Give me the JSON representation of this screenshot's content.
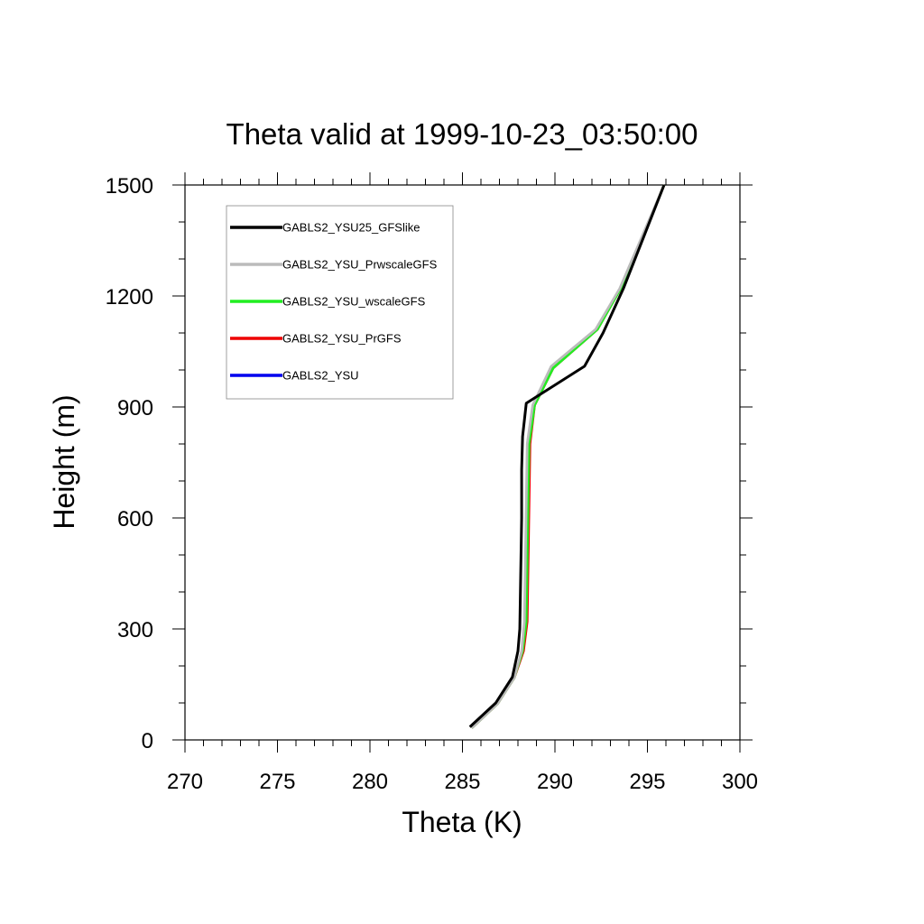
{
  "chart_data": {
    "type": "line",
    "title": "Theta valid at 1999-10-23_03:50:00",
    "xlabel": "Theta (K)",
    "ylabel": "Height (m)",
    "xlim": [
      270,
      300
    ],
    "ylim": [
      0,
      1500
    ],
    "x_ticks": [
      "270",
      "275",
      "280",
      "285",
      "290",
      "295",
      "300"
    ],
    "y_ticks": [
      "0",
      "300",
      "600",
      "900",
      "1200",
      "1500"
    ],
    "legend_position": "top-left",
    "grid": false,
    "series": [
      {
        "name": "GABLS2_YSU25_GFSlike",
        "color": "#000000",
        "points": [
          [
            285.4,
            35
          ],
          [
            286.8,
            100
          ],
          [
            287.7,
            170
          ],
          [
            288.0,
            240
          ],
          [
            288.1,
            300
          ],
          [
            288.15,
            450
          ],
          [
            288.2,
            600
          ],
          [
            288.2,
            730
          ],
          [
            288.25,
            820
          ],
          [
            288.45,
            910
          ],
          [
            291.6,
            1010
          ],
          [
            292.6,
            1100
          ],
          [
            293.7,
            1220
          ],
          [
            294.8,
            1360
          ],
          [
            295.9,
            1500
          ]
        ]
      },
      {
        "name": "GABLS2_YSU_PrwscaleGFS",
        "color": "#bbbbbb",
        "points": [
          [
            285.5,
            32
          ],
          [
            286.9,
            98
          ],
          [
            287.8,
            168
          ],
          [
            288.2,
            240
          ],
          [
            288.35,
            320
          ],
          [
            288.4,
            480
          ],
          [
            288.45,
            640
          ],
          [
            288.5,
            800
          ],
          [
            288.8,
            905
          ],
          [
            289.8,
            1010
          ],
          [
            292.2,
            1110
          ],
          [
            293.5,
            1220
          ],
          [
            294.7,
            1360
          ],
          [
            295.9,
            1500
          ]
        ]
      },
      {
        "name": "GABLS2_YSU_wscaleGFS",
        "color": "#22ee22",
        "points": [
          [
            285.5,
            32
          ],
          [
            286.9,
            98
          ],
          [
            287.8,
            168
          ],
          [
            288.25,
            240
          ],
          [
            288.45,
            320
          ],
          [
            288.5,
            480
          ],
          [
            288.55,
            640
          ],
          [
            288.6,
            800
          ],
          [
            288.9,
            905
          ],
          [
            289.9,
            1005
          ],
          [
            292.3,
            1110
          ],
          [
            293.55,
            1220
          ],
          [
            294.75,
            1360
          ],
          [
            295.9,
            1500
          ]
        ]
      },
      {
        "name": "GABLS2_YSU_PrGFS",
        "color": "#ee0000",
        "points": [
          [
            285.5,
            32
          ],
          [
            286.9,
            98
          ],
          [
            287.8,
            168
          ],
          [
            288.3,
            240
          ],
          [
            288.5,
            320
          ],
          [
            288.55,
            480
          ],
          [
            288.6,
            640
          ],
          [
            288.65,
            800
          ],
          [
            288.9,
            905
          ],
          [
            289.9,
            1005
          ],
          [
            292.3,
            1110
          ],
          [
            293.55,
            1220
          ],
          [
            294.75,
            1360
          ],
          [
            295.9,
            1500
          ]
        ]
      },
      {
        "name": "GABLS2_YSU",
        "color": "#0000ee",
        "points": []
      }
    ]
  }
}
